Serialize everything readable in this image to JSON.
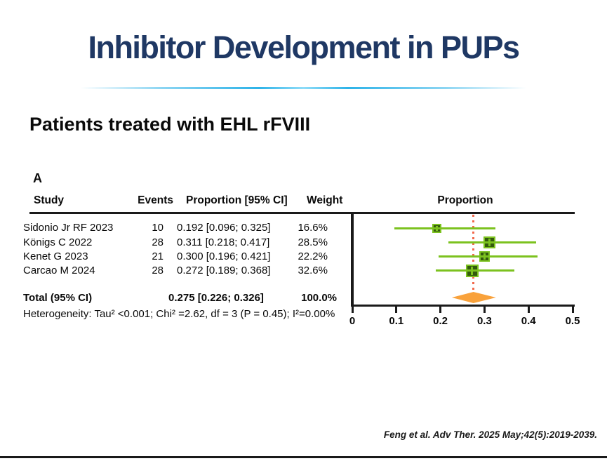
{
  "slide": {
    "title": "Inhibitor Development in PUPs",
    "subtitle": "Patients treated with EHL rFVIII",
    "panel_label": "A",
    "citation": "Feng et al. Adv Ther. 2025 May;42(5):2019-2039."
  },
  "table": {
    "headers": {
      "study": "Study",
      "events": "Events",
      "proportion": "Proportion [95% CI]",
      "weight": "Weight",
      "plot": "Proportion"
    },
    "rows": [
      {
        "study": "Sidonio Jr RF 2023",
        "events": "10",
        "proportion": "0.192 [0.096; 0.325]",
        "weight": "16.6%"
      },
      {
        "study": "Königs C 2022",
        "events": "28",
        "proportion": "0.311 [0.218; 0.417]",
        "weight": "28.5%"
      },
      {
        "study": "Kenet G 2023",
        "events": "21",
        "proportion": "0.300 [0.196; 0.421]",
        "weight": "22.2%"
      },
      {
        "study": "Carcao M 2024",
        "events": "28",
        "proportion": "0.272 [0.189; 0.368]",
        "weight": "32.6%"
      }
    ],
    "total": {
      "label": "Total (95% CI)",
      "proportion": "0.275 [0.226; 0.326]",
      "weight": "100.0%"
    },
    "heterogeneity": "Heterogeneity: Tau² <0.001; Chi² =2.62, df = 3 (P = 0.45); I²=0.00%"
  },
  "chart_data": {
    "type": "forest",
    "title": "Proportion",
    "xlim": [
      0,
      0.5
    ],
    "x_ticks": [
      0,
      0.1,
      0.2,
      0.3,
      0.4,
      0.5
    ],
    "reference_line": 0.275,
    "studies": [
      {
        "name": "Sidonio Jr RF 2023",
        "events": 10,
        "estimate": 0.192,
        "ci_low": 0.096,
        "ci_high": 0.325,
        "weight_pct": 16.6
      },
      {
        "name": "Königs C 2022",
        "events": 28,
        "estimate": 0.311,
        "ci_low": 0.218,
        "ci_high": 0.417,
        "weight_pct": 28.5
      },
      {
        "name": "Kenet G 2023",
        "events": 21,
        "estimate": 0.3,
        "ci_low": 0.196,
        "ci_high": 0.421,
        "weight_pct": 22.2
      },
      {
        "name": "Carcao M 2024",
        "events": 28,
        "estimate": 0.272,
        "ci_low": 0.189,
        "ci_high": 0.368,
        "weight_pct": 32.6
      }
    ],
    "total": {
      "estimate": 0.275,
      "ci_low": 0.226,
      "ci_high": 0.326,
      "weight_pct": 100.0
    },
    "colors": {
      "ci_line": "#7cc21f",
      "square_fill": "#335a0e",
      "square_border": "#7cc21f",
      "diamond": "#f9a23b",
      "ref_line": "#f2694c",
      "axis": "#1a1a1a",
      "title_navy": "#1F3864",
      "divider_cyan": "#2eb3e8"
    }
  }
}
